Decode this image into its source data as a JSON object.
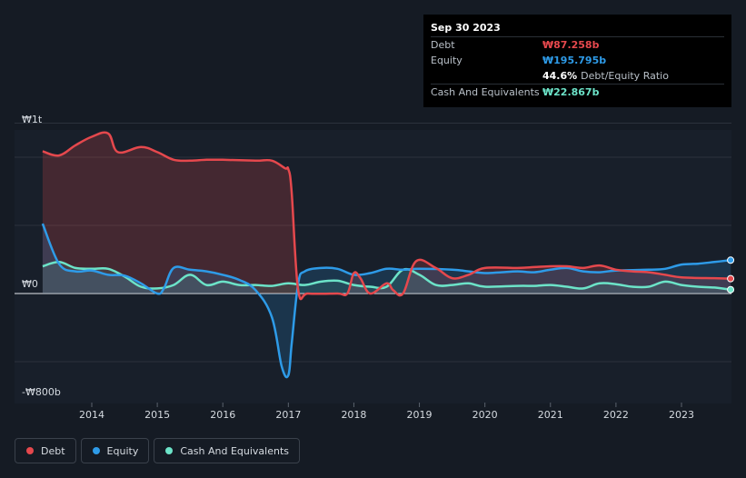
{
  "chart_data": {
    "type": "line",
    "y_top_label": "₩1t",
    "y_zero_label": "₩0",
    "y_bottom_label": "-₩800b",
    "ylim": [
      -800,
      1000
    ],
    "xlim": [
      2013.1,
      2023.75
    ],
    "x_ticks": [
      2014,
      2015,
      2016,
      2017,
      2018,
      2019,
      2020,
      2021,
      2022,
      2023
    ],
    "series": [
      {
        "name": "Debt",
        "color": "#e5484d",
        "points": [
          [
            2013.25,
            835
          ],
          [
            2013.5,
            810
          ],
          [
            2013.75,
            870
          ],
          [
            2014.0,
            920
          ],
          [
            2014.25,
            940
          ],
          [
            2014.4,
            830
          ],
          [
            2014.75,
            860
          ],
          [
            2015.0,
            830
          ],
          [
            2015.25,
            785
          ],
          [
            2015.5,
            780
          ],
          [
            2015.75,
            785
          ],
          [
            2016.0,
            785
          ],
          [
            2016.5,
            780
          ],
          [
            2016.75,
            780
          ],
          [
            2016.95,
            735
          ],
          [
            2017.0,
            730
          ],
          [
            2017.05,
            600
          ],
          [
            2017.15,
            20
          ],
          [
            2017.3,
            0
          ],
          [
            2017.75,
            0
          ],
          [
            2017.9,
            0
          ],
          [
            2018.0,
            120
          ],
          [
            2018.1,
            90
          ],
          [
            2018.25,
            0
          ],
          [
            2018.5,
            60
          ],
          [
            2018.6,
            20
          ],
          [
            2018.75,
            0
          ],
          [
            2018.95,
            190
          ],
          [
            2019.25,
            150
          ],
          [
            2019.5,
            90
          ],
          [
            2019.75,
            110
          ],
          [
            2020.0,
            150
          ],
          [
            2020.5,
            150
          ],
          [
            2020.75,
            155
          ],
          [
            2021.0,
            160
          ],
          [
            2021.25,
            160
          ],
          [
            2021.5,
            150
          ],
          [
            2021.75,
            165
          ],
          [
            2022.0,
            140
          ],
          [
            2022.25,
            130
          ],
          [
            2022.5,
            125
          ],
          [
            2022.75,
            110
          ],
          [
            2023.0,
            95
          ],
          [
            2023.5,
            90
          ],
          [
            2023.75,
            87.258
          ]
        ]
      },
      {
        "name": "Equity",
        "color": "#2e9be8",
        "points": [
          [
            2013.25,
            410
          ],
          [
            2013.5,
            175
          ],
          [
            2013.75,
            130
          ],
          [
            2014.0,
            135
          ],
          [
            2014.25,
            110
          ],
          [
            2014.5,
            105
          ],
          [
            2014.75,
            60
          ],
          [
            2015.0,
            0
          ],
          [
            2015.1,
            30
          ],
          [
            2015.25,
            150
          ],
          [
            2015.5,
            140
          ],
          [
            2015.75,
            130
          ],
          [
            2016.0,
            110
          ],
          [
            2016.25,
            80
          ],
          [
            2016.5,
            20
          ],
          [
            2016.75,
            -140
          ],
          [
            2016.9,
            -430
          ],
          [
            2017.0,
            -480
          ],
          [
            2017.05,
            -300
          ],
          [
            2017.15,
            60
          ],
          [
            2017.25,
            130
          ],
          [
            2017.5,
            150
          ],
          [
            2017.75,
            145
          ],
          [
            2018.0,
            110
          ],
          [
            2018.25,
            120
          ],
          [
            2018.5,
            145
          ],
          [
            2018.75,
            140
          ],
          [
            2019.0,
            145
          ],
          [
            2019.5,
            140
          ],
          [
            2019.75,
            130
          ],
          [
            2020.0,
            120
          ],
          [
            2020.25,
            125
          ],
          [
            2020.5,
            130
          ],
          [
            2020.75,
            125
          ],
          [
            2021.0,
            140
          ],
          [
            2021.25,
            150
          ],
          [
            2021.5,
            130
          ],
          [
            2021.75,
            125
          ],
          [
            2022.0,
            135
          ],
          [
            2022.5,
            140
          ],
          [
            2022.75,
            145
          ],
          [
            2023.0,
            170
          ],
          [
            2023.25,
            175
          ],
          [
            2023.5,
            185
          ],
          [
            2023.75,
            195.795
          ]
        ]
      },
      {
        "name": "Cash And Equivalents",
        "color": "#6ce3c8",
        "points": [
          [
            2013.25,
            160
          ],
          [
            2013.5,
            185
          ],
          [
            2013.75,
            150
          ],
          [
            2014.0,
            145
          ],
          [
            2014.25,
            145
          ],
          [
            2014.5,
            100
          ],
          [
            2014.75,
            40
          ],
          [
            2015.0,
            30
          ],
          [
            2015.25,
            50
          ],
          [
            2015.5,
            110
          ],
          [
            2015.75,
            50
          ],
          [
            2016.0,
            70
          ],
          [
            2016.25,
            50
          ],
          [
            2016.5,
            50
          ],
          [
            2016.75,
            45
          ],
          [
            2017.0,
            60
          ],
          [
            2017.25,
            50
          ],
          [
            2017.5,
            70
          ],
          [
            2017.75,
            75
          ],
          [
            2018.0,
            50
          ],
          [
            2018.25,
            40
          ],
          [
            2018.5,
            40
          ],
          [
            2018.75,
            140
          ],
          [
            2019.0,
            110
          ],
          [
            2019.25,
            50
          ],
          [
            2019.5,
            50
          ],
          [
            2019.75,
            60
          ],
          [
            2020.0,
            40
          ],
          [
            2020.5,
            45
          ],
          [
            2020.75,
            45
          ],
          [
            2021.0,
            50
          ],
          [
            2021.25,
            40
          ],
          [
            2021.5,
            30
          ],
          [
            2021.75,
            60
          ],
          [
            2022.0,
            55
          ],
          [
            2022.25,
            40
          ],
          [
            2022.5,
            40
          ],
          [
            2022.75,
            70
          ],
          [
            2023.0,
            50
          ],
          [
            2023.25,
            40
          ],
          [
            2023.5,
            35
          ],
          [
            2023.75,
            22.867
          ]
        ]
      }
    ]
  },
  "tooltip": {
    "date": "Sep 30 2023",
    "rows": [
      {
        "label": "Debt",
        "value": "₩87.258b",
        "color": "#e5484d"
      },
      {
        "label": "Equity",
        "value": "₩195.795b",
        "color": "#2e9be8"
      },
      {
        "label": "",
        "value": "44.6%",
        "suffix": "Debt/Equity Ratio",
        "color": "#ffffff"
      },
      {
        "label": "Cash And Equivalents",
        "value": "₩22.867b",
        "color": "#6ce3c8"
      }
    ]
  },
  "legend": [
    {
      "label": "Debt",
      "color": "#e5484d"
    },
    {
      "label": "Equity",
      "color": "#2e9be8"
    },
    {
      "label": "Cash And Equivalents",
      "color": "#6ce3c8"
    }
  ]
}
